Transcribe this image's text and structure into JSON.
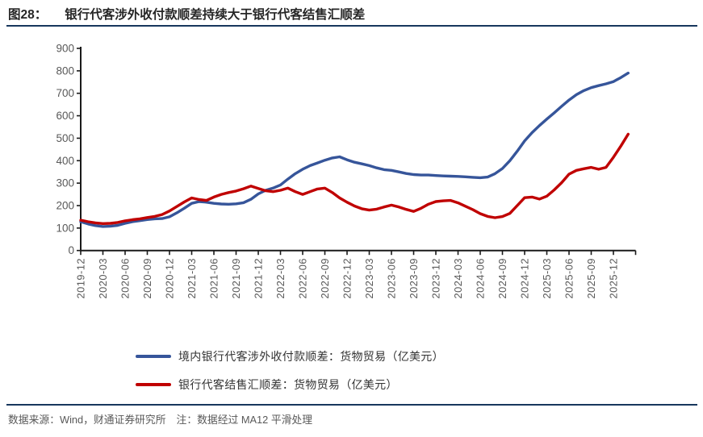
{
  "header": {
    "figure_label": "图28：",
    "title": "银行代客涉外收付款顺差持续大于银行代客结售汇顺差"
  },
  "footer": {
    "source": "数据来源：Wind，财通证券研究所",
    "note": "注：数据经过 MA12 平滑处理"
  },
  "colors": {
    "series1": "#36559A",
    "series2": "#C00000",
    "rule": "#17375D",
    "axis": "#1a1a1a",
    "tick_label": "#595959"
  },
  "chart_data": {
    "type": "line",
    "title": "银行代客涉外收付款顺差持续大于银行代客结售汇顺差",
    "ylabel": "亿美元",
    "ylim": [
      0,
      900
    ],
    "yticks": [
      0,
      100,
      200,
      300,
      400,
      500,
      600,
      700,
      800,
      900
    ],
    "grid": false,
    "legend_position": "bottom",
    "x_interval": "monthly",
    "x_start": "2019-12",
    "x_tick_labels": [
      "2019-12",
      "2020-03",
      "2020-06",
      "2020-09",
      "2020-12",
      "2021-03",
      "2021-06",
      "2021-09",
      "2021-12",
      "2022-03",
      "2022-06",
      "2022-09",
      "2022-12",
      "2023-03",
      "2023-06",
      "2023-09",
      "2023-12",
      "2024-03",
      "2024-06",
      "2024-09",
      "2024-12",
      "2025-03",
      "2025-06",
      "2025-09",
      "2025-12"
    ],
    "series": [
      {
        "name": "境内银行代客涉外收付款顺差：货物贸易（亿美元）",
        "color": "#36559A",
        "values": [
          128,
          118,
          111,
          107,
          108,
          112,
          121,
          128,
          133,
          138,
          141,
          142,
          150,
          168,
          188,
          210,
          218,
          215,
          210,
          207,
          206,
          208,
          213,
          228,
          252,
          268,
          278,
          292,
          318,
          342,
          362,
          378,
          390,
          402,
          412,
          417,
          404,
          393,
          386,
          378,
          368,
          360,
          357,
          350,
          343,
          338,
          336,
          336,
          334,
          332,
          331,
          330,
          328,
          326,
          324,
          327,
          342,
          365,
          400,
          442,
          488,
          525,
          556,
          585,
          613,
          642,
          670,
          694,
          712,
          725,
          734,
          742,
          752,
          770,
          790
        ]
      },
      {
        "name": "银行代客结售汇顺差：货物贸易（亿美元）",
        "color": "#C00000",
        "values": [
          135,
          128,
          123,
          120,
          121,
          125,
          132,
          137,
          141,
          147,
          152,
          160,
          176,
          196,
          216,
          234,
          227,
          223,
          238,
          250,
          258,
          265,
          275,
          287,
          276,
          266,
          262,
          268,
          278,
          262,
          250,
          262,
          274,
          278,
          258,
          234,
          215,
          198,
          186,
          180,
          184,
          194,
          202,
          194,
          183,
          174,
          188,
          206,
          218,
          221,
          223,
          212,
          197,
          182,
          164,
          152,
          146,
          151,
          165,
          200,
          235,
          238,
          229,
          242,
          270,
          302,
          340,
          357,
          364,
          370,
          362,
          370,
          415,
          465,
          518
        ]
      }
    ]
  }
}
